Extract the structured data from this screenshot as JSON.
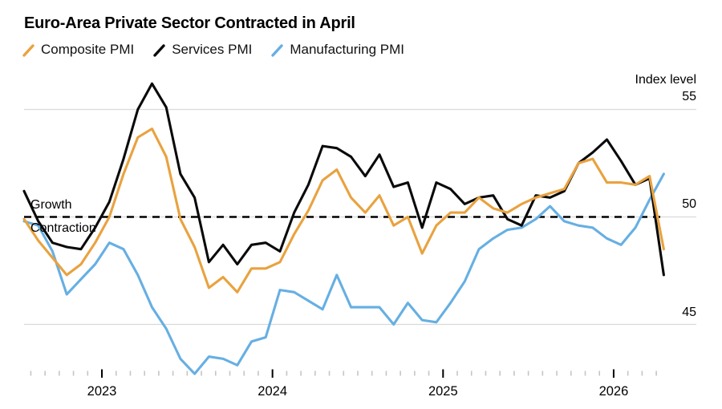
{
  "title": "Euro-Area Private Sector Contracted in April",
  "legend": [
    {
      "label": "Composite PMI",
      "color": "#E9A23F"
    },
    {
      "label": "Services PMI",
      "color": "#0A0A0A"
    },
    {
      "label": "Manufacturing PMI",
      "color": "#66AFE3"
    }
  ],
  "y_axis": {
    "title": "Index level",
    "ticks": [
      "55",
      "50",
      "45"
    ]
  },
  "x_axis": {
    "year_labels": [
      "2023",
      "2024",
      "2025",
      "2026"
    ]
  },
  "baseline": {
    "value": 50,
    "above_label": "Growth",
    "below_label": "Contraction"
  },
  "colors": {
    "grid": "#DADADA",
    "dashed_line": "#000000",
    "minor_tick": "#C5C5C5",
    "major_tick": "#000000"
  },
  "chart_data": {
    "type": "line",
    "unit": "PMI index level (50 = no change)",
    "dashed_reference_line": 50,
    "ylim": [
      41.5,
      56.5
    ],
    "grid_values": [
      55,
      50,
      45
    ],
    "legend_position": "top-left",
    "months": [
      "Jul 2022",
      "Aug 2022",
      "Sep 2022",
      "Oct 2022",
      "Nov 2022",
      "Dec 2022",
      "Jan 2023",
      "Feb 2023",
      "Mar 2023",
      "Apr 2023",
      "May 2023",
      "Jun 2023",
      "Jul 2023",
      "Aug 2023",
      "Sep 2023",
      "Oct 2023",
      "Nov 2023",
      "Dec 2023",
      "Jan 2024",
      "Feb 2024",
      "Mar 2024",
      "Apr 2024",
      "May 2024",
      "Jun 2024",
      "Jul 2024",
      "Aug 2024",
      "Sep 2024",
      "Oct 2024",
      "Nov 2024",
      "Dec 2024",
      "Jan 2025",
      "Feb 2025",
      "Mar 2025",
      "Apr 2025",
      "May 2025",
      "Jun 2025",
      "Jul 2025",
      "Aug 2025",
      "Sep 2025",
      "Oct 2025",
      "Nov 2025",
      "Dec 2025",
      "Jan 2026",
      "Feb 2026",
      "Mar 2026",
      "Apr 2026"
    ],
    "series": [
      {
        "name": "Composite PMI",
        "color": "#E9A23F",
        "values": [
          49.9,
          48.9,
          48.1,
          47.3,
          47.8,
          48.8,
          50.0,
          52.0,
          53.7,
          54.1,
          52.8,
          49.9,
          48.6,
          46.7,
          47.2,
          46.5,
          47.6,
          47.6,
          47.9,
          49.2,
          50.3,
          51.7,
          52.2,
          50.9,
          50.2,
          51.0,
          49.6,
          50.0,
          48.3,
          49.6,
          50.2,
          50.2,
          50.9,
          50.4,
          50.2,
          50.6,
          50.9,
          51.1,
          51.3,
          52.5,
          52.7,
          51.6,
          51.6,
          51.5,
          51.9,
          48.5
        ]
      },
      {
        "name": "Services PMI",
        "color": "#0A0A0A",
        "values": [
          51.2,
          49.8,
          48.8,
          48.6,
          48.5,
          49.5,
          50.7,
          52.7,
          55.0,
          56.2,
          55.1,
          52.0,
          50.9,
          47.9,
          48.7,
          47.8,
          48.7,
          48.8,
          48.4,
          50.2,
          51.5,
          53.3,
          53.2,
          52.8,
          51.9,
          52.9,
          51.4,
          51.6,
          49.5,
          51.6,
          51.3,
          50.6,
          50.9,
          51.0,
          49.9,
          49.6,
          51.0,
          50.9,
          51.2,
          52.5,
          53.0,
          53.6,
          52.6,
          51.5,
          51.8,
          47.3
        ]
      },
      {
        "name": "Manufacturing PMI",
        "color": "#66AFE3",
        "values": [
          49.8,
          49.6,
          48.4,
          46.4,
          47.1,
          47.8,
          48.8,
          48.5,
          47.3,
          45.8,
          44.8,
          43.4,
          42.7,
          43.5,
          43.4,
          43.1,
          44.2,
          44.4,
          46.6,
          46.5,
          46.1,
          45.7,
          47.3,
          45.8,
          45.8,
          45.8,
          45.0,
          46.0,
          45.2,
          45.1,
          46.0,
          47.0,
          48.5,
          49.0,
          49.4,
          49.5,
          49.9,
          50.5,
          49.8,
          49.6,
          49.5,
          49.0,
          48.7,
          49.5,
          50.8,
          52.0
        ]
      }
    ]
  }
}
